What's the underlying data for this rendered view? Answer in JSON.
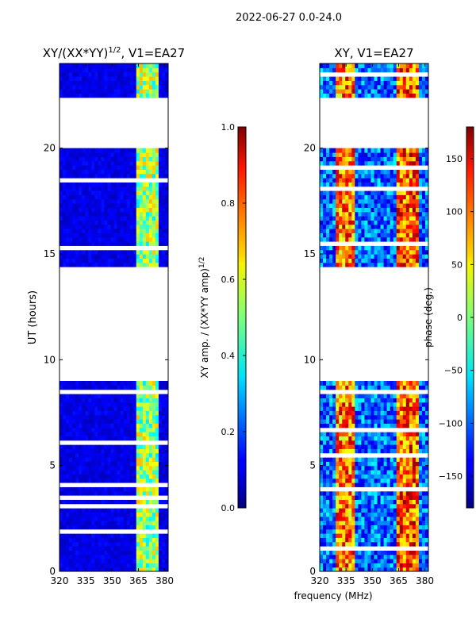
{
  "figure": {
    "suptitle": "2022-06-27 0.0-24.0",
    "xlabel": "frequency (MHz)"
  },
  "chart_data": [
    {
      "type": "heatmap",
      "title": "XY/(XX*YY)",
      "title_exp": "1/2",
      "title_suffix": ", V1=EA27",
      "xlabel": "",
      "ylabel": "UT (hours)",
      "xlim": [
        320,
        382
      ],
      "ylim": [
        0,
        24
      ],
      "xticks": [
        "320",
        "335",
        "350",
        "365",
        "380"
      ],
      "xtick_values": [
        320,
        335,
        350,
        365,
        380
      ],
      "yticks": [
        "0",
        "5",
        "10",
        "15",
        "20"
      ],
      "ytick_values": [
        0,
        5,
        10,
        15,
        20
      ],
      "data_gaps_hours": [
        [
          9.0,
          14.5
        ],
        [
          20.0,
          22.4
        ]
      ],
      "bright_band_mhz": [
        [
          363,
          366
        ],
        [
          367,
          370
        ],
        [
          372,
          377
        ]
      ],
      "colorbar": {
        "label": "XY amp. / (XX*YY amp)",
        "label_exp": "1/2",
        "range": [
          0.0,
          1.0
        ],
        "ticks": [
          "0.0",
          "0.2",
          "0.4",
          "0.6",
          "0.8",
          "1.0"
        ],
        "tick_values": [
          0.0,
          0.2,
          0.4,
          0.6,
          0.8,
          1.0
        ],
        "colormap": "jet"
      }
    },
    {
      "type": "heatmap",
      "title": "XY, V1=EA27",
      "xlabel": "",
      "ylabel": "",
      "xlim": [
        320,
        382
      ],
      "ylim": [
        0,
        24
      ],
      "xticks": [
        "320",
        "335",
        "350",
        "365",
        "380"
      ],
      "xtick_values": [
        320,
        335,
        350,
        365,
        380
      ],
      "yticks": [
        "0",
        "5",
        "10",
        "15",
        "20"
      ],
      "ytick_values": [
        0,
        5,
        10,
        15,
        20
      ],
      "data_gaps_hours": [
        [
          9.0,
          14.5
        ],
        [
          20.0,
          22.4
        ]
      ],
      "colorbar": {
        "label": "phase (deg.)",
        "range": [
          -180,
          180
        ],
        "ticks": [
          "−150",
          "−100",
          "−50",
          "0",
          "50",
          "100",
          "150"
        ],
        "tick_values": [
          -150,
          -100,
          -50,
          0,
          50,
          100,
          150
        ],
        "colormap": "jet"
      }
    }
  ]
}
